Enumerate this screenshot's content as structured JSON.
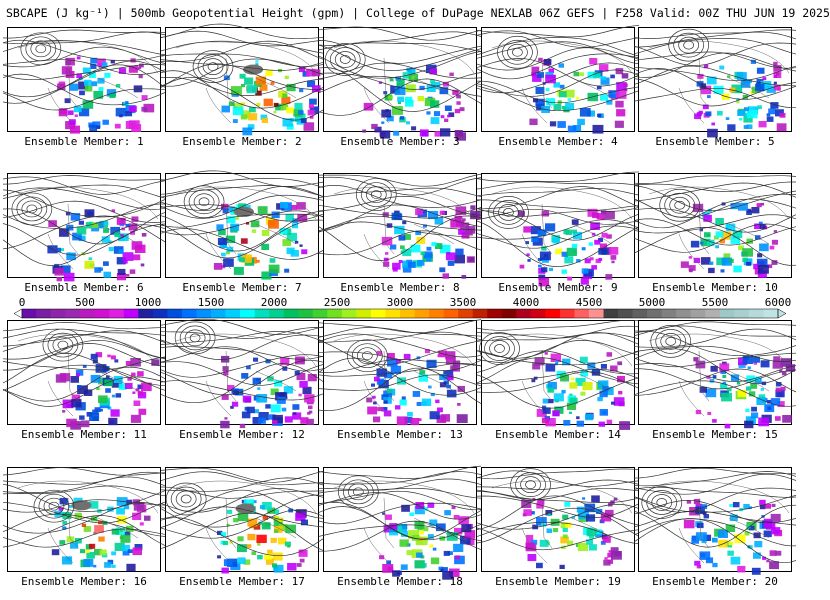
{
  "title": "SBCAPE (J kg⁻¹) | 500mb Geopotential Height (gpm) | College of DuPage NEXLAB 06Z GEFS | F258 Valid: 00Z THU JUN 19 2025",
  "member_label_prefix": "Ensemble Member:",
  "members": [
    {
      "label": "Ensemble Member: 1",
      "max_cape": 3000,
      "heavy": false
    },
    {
      "label": "Ensemble Member: 2",
      "max_cape": 5000,
      "heavy": true
    },
    {
      "label": "Ensemble Member: 3",
      "max_cape": 3500,
      "heavy": false
    },
    {
      "label": "Ensemble Member: 4",
      "max_cape": 3500,
      "heavy": false
    },
    {
      "label": "Ensemble Member: 5",
      "max_cape": 3500,
      "heavy": false
    },
    {
      "label": "Ensemble Member: 6",
      "max_cape": 3500,
      "heavy": false
    },
    {
      "label": "Ensemble Member: 7",
      "max_cape": 5000,
      "heavy": true
    },
    {
      "label": "Ensemble Member: 8",
      "max_cape": 3000,
      "heavy": false
    },
    {
      "label": "Ensemble Member: 9",
      "max_cape": 3000,
      "heavy": false
    },
    {
      "label": "Ensemble Member: 10",
      "max_cape": 3500,
      "heavy": false
    },
    {
      "label": "Ensemble Member: 11",
      "max_cape": 2500,
      "heavy": false
    },
    {
      "label": "Ensemble Member: 12",
      "max_cape": 2500,
      "heavy": false
    },
    {
      "label": "Ensemble Member: 13",
      "max_cape": 3000,
      "heavy": false
    },
    {
      "label": "Ensemble Member: 14",
      "max_cape": 3500,
      "heavy": false
    },
    {
      "label": "Ensemble Member: 15",
      "max_cape": 3000,
      "heavy": false
    },
    {
      "label": "Ensemble Member: 16",
      "max_cape": 5000,
      "heavy": true
    },
    {
      "label": "Ensemble Member: 17",
      "max_cape": 5000,
      "heavy": true
    },
    {
      "label": "Ensemble Member: 18",
      "max_cape": 3500,
      "heavy": false
    },
    {
      "label": "Ensemble Member: 19",
      "max_cape": 3500,
      "heavy": false
    },
    {
      "label": "Ensemble Member: 20",
      "max_cape": 3500,
      "heavy": false
    }
  ],
  "colorbar": {
    "min": 0,
    "max": 6000,
    "ticks": [
      "0",
      "500",
      "1000",
      "1500",
      "2000",
      "2500",
      "3000",
      "3500",
      "4000",
      "4500",
      "5000",
      "5500",
      "6000"
    ],
    "colors": [
      "#6a0dad",
      "#7b1fa2",
      "#8e24aa",
      "#9c27b0",
      "#b71cc0",
      "#d010d0",
      "#e020e0",
      "#c000ff",
      "#2020a0",
      "#1030c0",
      "#0050e0",
      "#0070ff",
      "#0090ff",
      "#00b0ff",
      "#00d0ff",
      "#00ffff",
      "#00e0c0",
      "#00d090",
      "#00c060",
      "#20c040",
      "#40d030",
      "#70e020",
      "#a0f020",
      "#d0f000",
      "#ffff00",
      "#ffe000",
      "#ffc000",
      "#ffa000",
      "#ff8000",
      "#ff6000",
      "#e04000",
      "#c02000",
      "#a00000",
      "#800000",
      "#b00020",
      "#d00010",
      "#ff0000",
      "#ff3030",
      "#ff6060",
      "#ff9090",
      "#404040",
      "#505050",
      "#606060",
      "#707070",
      "#808080",
      "#909090",
      "#a0a0a0",
      "#b0b0b0",
      "#9ec8c8",
      "#a8d0d0",
      "#b4dada",
      "#c0e4e4"
    ]
  },
  "colors": {
    "contour": "#333333",
    "border": "#000000"
  }
}
